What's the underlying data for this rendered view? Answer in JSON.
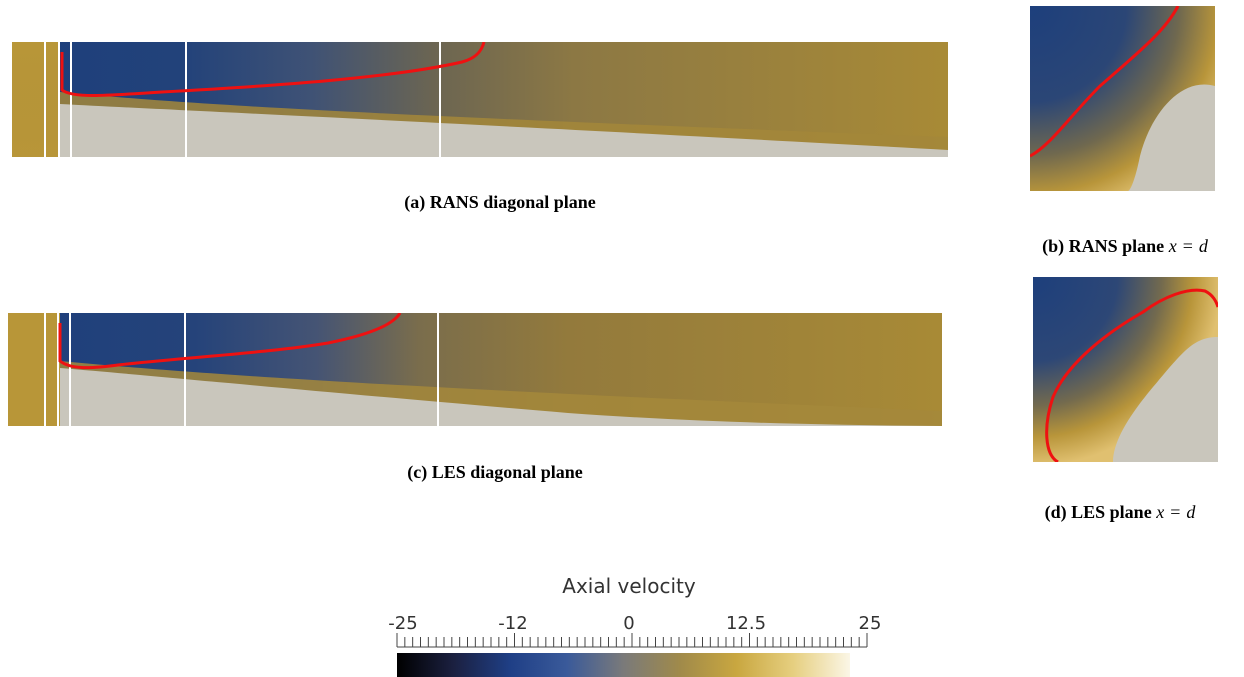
{
  "figure": {
    "panels": [
      {
        "id": "a",
        "tag": "(a)",
        "label": "RANS diagonal plane"
      },
      {
        "id": "b",
        "tag": "(b)",
        "label": "RANS plane",
        "math_lhs": "x",
        "math_eq": "=",
        "math_rhs": "d"
      },
      {
        "id": "c",
        "tag": "(c)",
        "label": "LES diagonal plane"
      },
      {
        "id": "d",
        "tag": "(d)",
        "label": "LES plane",
        "math_lhs": "x",
        "math_eq": "=",
        "math_rhs": "d"
      }
    ],
    "colorbar": {
      "title": "Axial velocity",
      "tick_labels": [
        "-25",
        "-12",
        "0",
        "12.5",
        "25"
      ],
      "range": [
        -25,
        25
      ],
      "colors": [
        "#000000",
        "#1b2040",
        "#1f3f86",
        "#3a5a9a",
        "#7a7a7a",
        "#a08a4a",
        "#c9a740",
        "#e6cf80",
        "#fbf6e6"
      ]
    },
    "field_colors": {
      "negative_region": "#1c3c78",
      "shear_layer": "#9a7f38",
      "near_zero": "#c8c6bd",
      "isoline": "#ee1111",
      "section_lines": "#ffffff"
    }
  }
}
